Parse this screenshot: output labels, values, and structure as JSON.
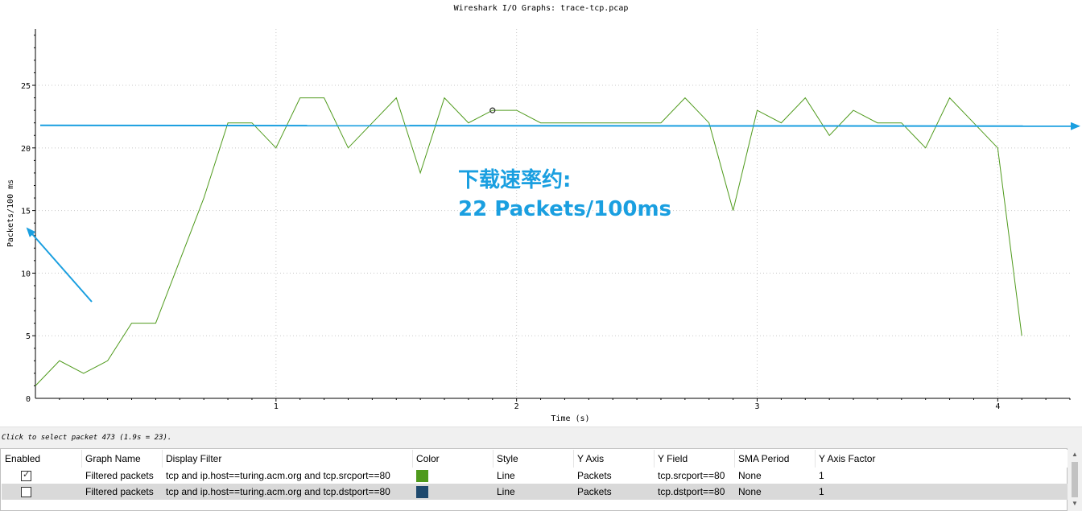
{
  "window": {
    "title": "Wireshark I/O Graphs: trace-tcp.pcap"
  },
  "annotation": {
    "line1": "下载速率约:",
    "line2": "22 Packets/100ms",
    "color": "#1a9fe0"
  },
  "colors": {
    "series1": "#4f9a1c",
    "series2": "#1f4a6e",
    "arrow": "#1a9fe0"
  },
  "chart_data": {
    "type": "line",
    "title": "Wireshark I/O Graphs: trace-tcp.pcap",
    "xlabel": "Time (s)",
    "ylabel": "Packets/100 ms",
    "xlim": [
      0,
      4.3
    ],
    "ylim": [
      0,
      29.5
    ],
    "x_ticks": [
      1,
      2,
      3,
      4
    ],
    "x_tick_labels": [
      "1",
      "2",
      "3",
      "4"
    ],
    "y_ticks": [
      0,
      5,
      10,
      15,
      20,
      25
    ],
    "y_tick_labels": [
      "0",
      "5",
      "10",
      "15",
      "20",
      "25"
    ],
    "grid": true,
    "reference_line_y": 21.8,
    "selected_point": {
      "x": 1.9,
      "y": 23
    },
    "series": [
      {
        "name": "Filtered packets",
        "x": [
          0.0,
          0.1,
          0.2,
          0.3,
          0.4,
          0.5,
          0.6,
          0.7,
          0.8,
          0.9,
          1.0,
          1.1,
          1.2,
          1.3,
          1.4,
          1.5,
          1.6,
          1.7,
          1.8,
          1.9,
          2.0,
          2.1,
          2.2,
          2.3,
          2.4,
          2.5,
          2.6,
          2.7,
          2.8,
          2.9,
          3.0,
          3.1,
          3.2,
          3.3,
          3.4,
          3.5,
          3.6,
          3.7,
          3.8,
          3.9,
          4.0,
          4.1
        ],
        "values": [
          1,
          3,
          2,
          3,
          6,
          6,
          11,
          16,
          22,
          22,
          20,
          24,
          24,
          20,
          22,
          24,
          18,
          24,
          22,
          23,
          23,
          22,
          22,
          22,
          22,
          22,
          22,
          24,
          22,
          15,
          23,
          22,
          24,
          21,
          23,
          22,
          22,
          20,
          24,
          22,
          20,
          5
        ]
      }
    ]
  },
  "status": {
    "text": "Click to select packet 473 (1.9s = 23)."
  },
  "table": {
    "headers": [
      "Enabled",
      "Graph Name",
      "Display Filter",
      "Color",
      "Style",
      "Y Axis",
      "Y Field",
      "SMA Period",
      "Y Axis Factor"
    ],
    "rows": [
      {
        "enabled": true,
        "enabled_mark": "✓",
        "name": "Filtered packets",
        "filter": "tcp and ip.host==turing.acm.org and tcp.srcport==80",
        "color": "#4f9a1c",
        "style": "Line",
        "y_axis": "Packets",
        "y_field": "tcp.srcport==80",
        "sma": "None",
        "factor": "1"
      },
      {
        "enabled": false,
        "enabled_mark": "",
        "name": "Filtered packets",
        "filter": "tcp and ip.host==turing.acm.org and tcp.dstport==80",
        "color": "#1f4a6e",
        "style": "Line",
        "y_axis": "Packets",
        "y_field": "tcp.dstport==80",
        "sma": "None",
        "factor": "1"
      }
    ]
  }
}
